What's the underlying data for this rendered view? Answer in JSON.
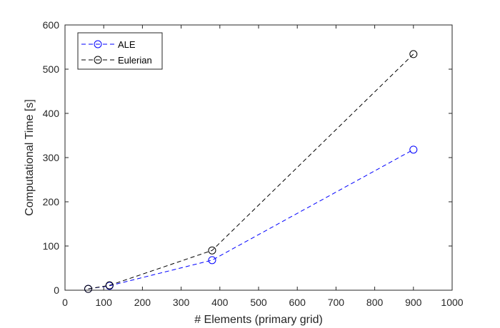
{
  "chart_data": {
    "type": "line",
    "xlabel": "# Elements (primary grid)",
    "ylabel": "Computational Time [s]",
    "xlim": [
      0,
      1000
    ],
    "ylim": [
      0,
      600
    ],
    "xticks": [
      0,
      100,
      200,
      300,
      400,
      500,
      600,
      700,
      800,
      900,
      1000
    ],
    "yticks": [
      0,
      100,
      200,
      300,
      400,
      500,
      600
    ],
    "grid": false,
    "legend_position": "top-left",
    "series": [
      {
        "name": "ALE",
        "color": "#0000ff",
        "line_style": "dashed",
        "marker": "circle",
        "x": [
          60,
          115,
          380,
          900
        ],
        "y": [
          3,
          10,
          68,
          318
        ]
      },
      {
        "name": "Eulerian",
        "color": "#000000",
        "line_style": "dashed",
        "marker": "circle",
        "x": [
          60,
          115,
          380,
          900
        ],
        "y": [
          3,
          11,
          90,
          534
        ]
      }
    ]
  }
}
